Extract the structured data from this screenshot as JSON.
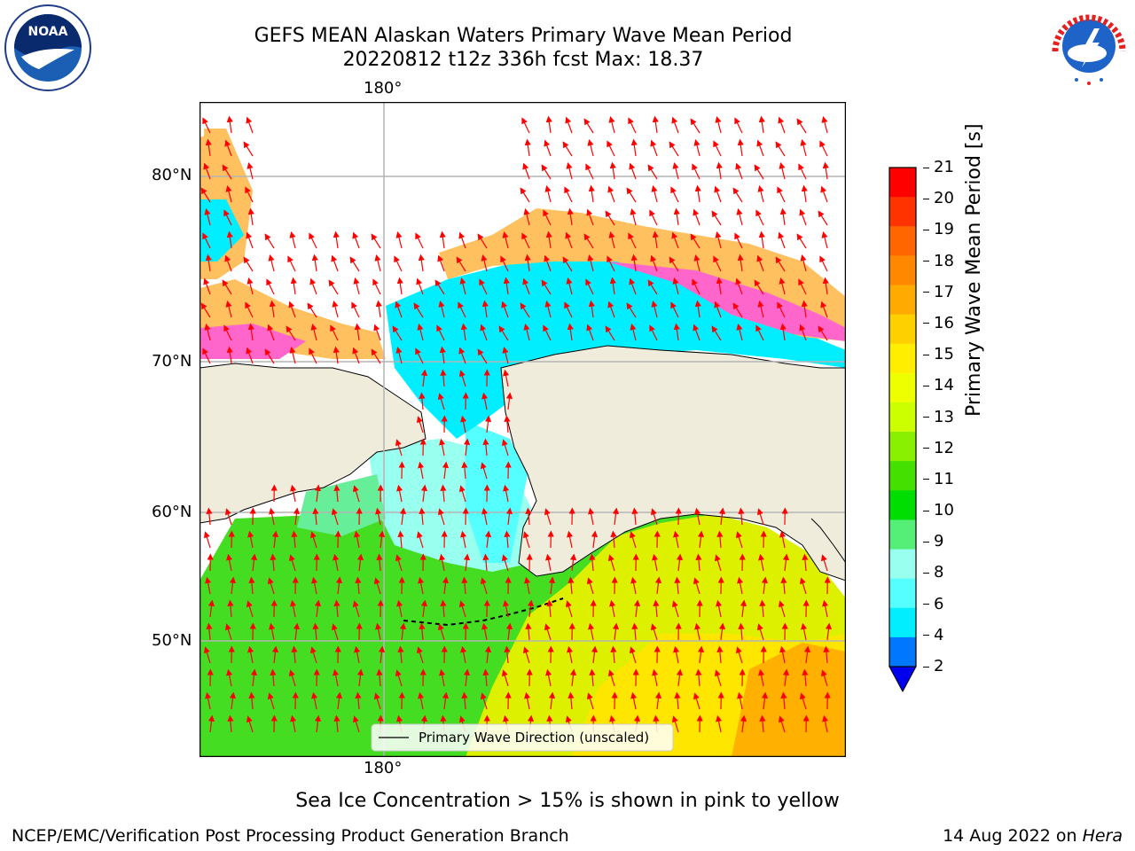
{
  "title": {
    "line1": "GEFS MEAN Alaskan Waters Primary Wave Mean Period",
    "line2": "20220812 t12z 336h fcst   Max: 18.37"
  },
  "logos": {
    "noaa_text": "NOAA",
    "nws_text": "NATIONAL WEATHER SERVICE"
  },
  "map": {
    "lon_label_top": "180°",
    "lon_label_bottom": "180°",
    "lat_labels": [
      "80°N",
      "70°N",
      "60°N",
      "50°N"
    ],
    "land_color": "#efecdc",
    "grid_color": "#b4b4b4",
    "arrow_color": "#ff0000",
    "legend_text": "Primary Wave Direction (unscaled)"
  },
  "colorbar": {
    "label": "Primary Wave Mean Period [s]",
    "ticks": [
      "21",
      "20",
      "19",
      "18",
      "17",
      "16",
      "15",
      "14",
      "13",
      "12",
      "11",
      "10",
      "9",
      "8",
      "6",
      "4",
      "2"
    ],
    "colors": [
      "#ff0000",
      "#ff3300",
      "#ff6600",
      "#ff8800",
      "#ffaa00",
      "#ffd000",
      "#ffee00",
      "#eeff00",
      "#ccff00",
      "#88f000",
      "#44e000",
      "#00dd00",
      "#55ee77",
      "#99ffee",
      "#55ffff",
      "#00eeff",
      "#0077ff"
    ],
    "under_color": "#0000ee"
  },
  "note": "Sea Ice Concentration > 15% is shown in pink to yellow",
  "footer": {
    "left": "NCEP/EMC/Verification Post Processing Product Generation Branch",
    "date": "14 Aug 2022 on ",
    "machine": "Hera"
  }
}
